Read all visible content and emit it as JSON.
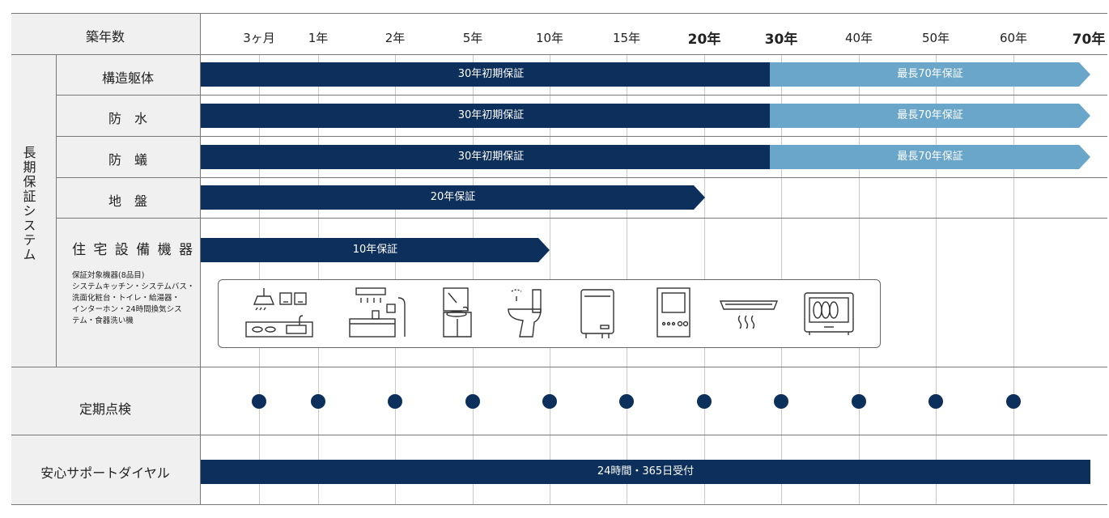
{
  "header": {
    "label": "築年数"
  },
  "ticks": [
    {
      "label": "3ヶ月",
      "bold": false
    },
    {
      "label": "1年",
      "bold": false
    },
    {
      "label": "2年",
      "bold": false
    },
    {
      "label": "5年",
      "bold": false
    },
    {
      "label": "10年",
      "bold": false
    },
    {
      "label": "15年",
      "bold": false
    },
    {
      "label": "20年",
      "bold": true
    },
    {
      "label": "30年",
      "bold": true
    },
    {
      "label": "40年",
      "bold": false
    },
    {
      "label": "50年",
      "bold": false
    },
    {
      "label": "60年",
      "bold": false
    },
    {
      "label": "70年",
      "bold": true
    }
  ],
  "group_label": "長期保証システム",
  "rows": {
    "structure": {
      "label": "構造躯体",
      "bars": [
        {
          "text": "30年初期保証",
          "from": "0",
          "to": "30年",
          "tone": "dark"
        },
        {
          "text": "最長70年保証",
          "from": "30年",
          "to": "70年",
          "tone": "light"
        }
      ]
    },
    "waterproof": {
      "label": "防　水",
      "bars": [
        {
          "text": "30年初期保証",
          "from": "0",
          "to": "30年",
          "tone": "dark"
        },
        {
          "text": "最長70年保証",
          "from": "30年",
          "to": "70年",
          "tone": "light"
        }
      ]
    },
    "termite": {
      "label": "防　蟻",
      "bars": [
        {
          "text": "30年初期保証",
          "from": "0",
          "to": "30年",
          "tone": "dark"
        },
        {
          "text": "最長70年保証",
          "from": "30年",
          "to": "70年",
          "tone": "light"
        }
      ]
    },
    "ground": {
      "label": "地　盤",
      "bars": [
        {
          "text": "20年保証",
          "from": "0",
          "to": "20年",
          "tone": "dark"
        }
      ]
    },
    "equipment": {
      "label": "住 宅 設 備 機 器",
      "note_lines": [
        "保証対象機器(8品目)",
        "システムキッチン・システムバス・",
        "洗面化粧台・トイレ・給湯器・",
        "インターホン・24時間換気シス",
        "テム・食器洗い機"
      ],
      "bars": [
        {
          "text": "10年保証",
          "from": "0",
          "to": "10年",
          "tone": "dark"
        }
      ],
      "appliances": [
        "kitchen-icon",
        "bathtub-icon",
        "vanity-icon",
        "toilet-icon",
        "water-heater-icon",
        "intercom-icon",
        "ventilation-fan-icon",
        "dishwasher-icon"
      ]
    },
    "inspection": {
      "label": "定期点検",
      "dots_at": [
        "3ヶ月",
        "1年",
        "2年",
        "5年",
        "10年",
        "15年",
        "20年",
        "30年",
        "40年",
        "50年",
        "60年"
      ]
    },
    "support": {
      "label": "安心サポートダイヤル",
      "bar_text": "24時間・365日受付"
    }
  },
  "colors": {
    "dark": "#0d2f5b",
    "light": "#6aa6c9",
    "header_bg": "#f0f0f0",
    "line": "#777777"
  }
}
